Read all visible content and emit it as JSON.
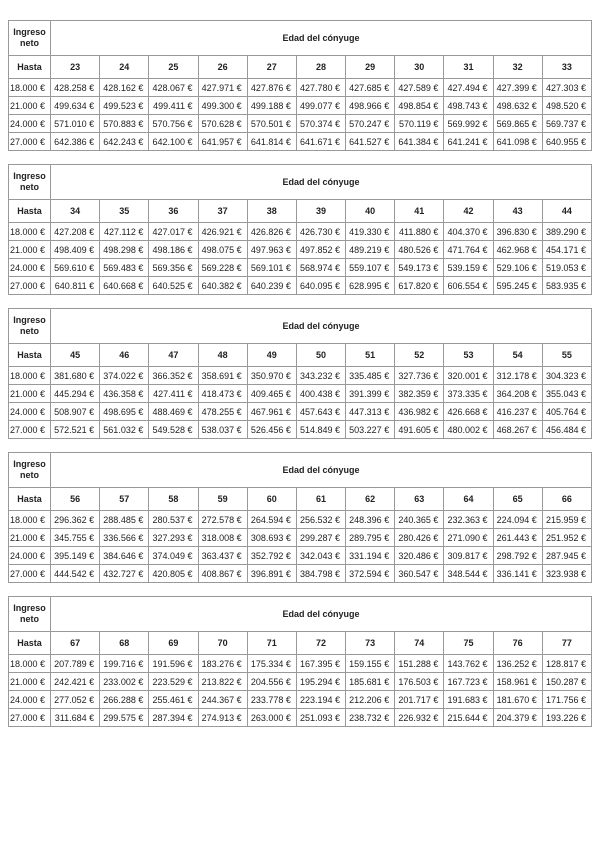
{
  "labels": {
    "income_header": "Ingreso neto",
    "age_header": "Edad del cónyuge",
    "hasta_header": "Hasta"
  },
  "colors": {
    "border": "#999999",
    "text": "#222222",
    "background": "#ffffff"
  },
  "tables": [
    {
      "ages": [
        "23",
        "24",
        "25",
        "26",
        "27",
        "28",
        "29",
        "30",
        "31",
        "32",
        "33"
      ],
      "rows": [
        {
          "income": "18.000 €",
          "values": [
            "428.258 €",
            "428.162 €",
            "428.067 €",
            "427.971 €",
            "427.876 €",
            "427.780 €",
            "427.685 €",
            "427.589 €",
            "427.494 €",
            "427.399 €",
            "427.303 €"
          ]
        },
        {
          "income": "21.000 €",
          "values": [
            "499.634 €",
            "499.523 €",
            "499.411 €",
            "499.300 €",
            "499.188 €",
            "499.077 €",
            "498.966 €",
            "498.854 €",
            "498.743 €",
            "498.632 €",
            "498.520 €"
          ]
        },
        {
          "income": "24.000 €",
          "values": [
            "571.010 €",
            "570.883 €",
            "570.756 €",
            "570.628 €",
            "570.501 €",
            "570.374 €",
            "570.247 €",
            "570.119 €",
            "569.992 €",
            "569.865 €",
            "569.737 €"
          ]
        },
        {
          "income": "27.000 €",
          "values": [
            "642.386 €",
            "642.243 €",
            "642.100 €",
            "641.957 €",
            "641.814 €",
            "641.671 €",
            "641.527 €",
            "641.384 €",
            "641.241 €",
            "641.098 €",
            "640.955 €"
          ]
        }
      ]
    },
    {
      "ages": [
        "34",
        "35",
        "36",
        "37",
        "38",
        "39",
        "40",
        "41",
        "42",
        "43",
        "44"
      ],
      "rows": [
        {
          "income": "18.000 €",
          "values": [
            "427.208 €",
            "427.112 €",
            "427.017 €",
            "426.921 €",
            "426.826 €",
            "426.730 €",
            "419.330 €",
            "411.880 €",
            "404.370 €",
            "396.830 €",
            "389.290 €"
          ]
        },
        {
          "income": "21.000 €",
          "values": [
            "498.409 €",
            "498.298 €",
            "498.186 €",
            "498.075 €",
            "497.963 €",
            "497.852 €",
            "489.219 €",
            "480.526 €",
            "471.764 €",
            "462.968 €",
            "454.171 €"
          ]
        },
        {
          "income": "24.000 €",
          "values": [
            "569.610 €",
            "569.483 €",
            "569.356 €",
            "569.228 €",
            "569.101 €",
            "568.974 €",
            "559.107 €",
            "549.173 €",
            "539.159 €",
            "529.106 €",
            "519.053 €"
          ]
        },
        {
          "income": "27.000 €",
          "values": [
            "640.811 €",
            "640.668 €",
            "640.525 €",
            "640.382 €",
            "640.239 €",
            "640.095 €",
            "628.995 €",
            "617.820 €",
            "606.554 €",
            "595.245 €",
            "583.935 €"
          ]
        }
      ]
    },
    {
      "ages": [
        "45",
        "46",
        "47",
        "48",
        "49",
        "50",
        "51",
        "52",
        "53",
        "54",
        "55"
      ],
      "rows": [
        {
          "income": "18.000 €",
          "values": [
            "381.680 €",
            "374.022 €",
            "366.352 €",
            "358.691 €",
            "350.970 €",
            "343.232 €",
            "335.485 €",
            "327.736 €",
            "320.001 €",
            "312.178 €",
            "304.323 €"
          ]
        },
        {
          "income": "21.000 €",
          "values": [
            "445.294 €",
            "436.358 €",
            "427.411 €",
            "418.473 €",
            "409.465 €",
            "400.438 €",
            "391.399 €",
            "382.359 €",
            "373.335 €",
            "364.208 €",
            "355.043 €"
          ]
        },
        {
          "income": "24.000 €",
          "values": [
            "508.907 €",
            "498.695 €",
            "488.469 €",
            "478.255 €",
            "467.961 €",
            "457.643 €",
            "447.313 €",
            "436.982 €",
            "426.668 €",
            "416.237 €",
            "405.764 €"
          ]
        },
        {
          "income": "27.000 €",
          "values": [
            "572.521 €",
            "561.032 €",
            "549.528 €",
            "538.037 €",
            "526.456 €",
            "514.849 €",
            "503.227 €",
            "491.605 €",
            "480.002 €",
            "468.267 €",
            "456.484 €"
          ]
        }
      ]
    },
    {
      "ages": [
        "56",
        "57",
        "58",
        "59",
        "60",
        "61",
        "62",
        "63",
        "64",
        "65",
        "66"
      ],
      "rows": [
        {
          "income": "18.000 €",
          "values": [
            "296.362 €",
            "288.485 €",
            "280.537 €",
            "272.578 €",
            "264.594 €",
            "256.532 €",
            "248.396 €",
            "240.365 €",
            "232.363 €",
            "224.094 €",
            "215.959 €"
          ]
        },
        {
          "income": "21.000 €",
          "values": [
            "345.755 €",
            "336.566 €",
            "327.293 €",
            "318.008 €",
            "308.693 €",
            "299.287 €",
            "289.795 €",
            "280.426 €",
            "271.090 €",
            "261.443 €",
            "251.952 €"
          ]
        },
        {
          "income": "24.000 €",
          "values": [
            "395.149 €",
            "384.646 €",
            "374.049 €",
            "363.437 €",
            "352.792 €",
            "342.043 €",
            "331.194 €",
            "320.486 €",
            "309.817 €",
            "298.792 €",
            "287.945 €"
          ]
        },
        {
          "income": "27.000 €",
          "values": [
            "444.542 €",
            "432.727 €",
            "420.805 €",
            "408.867 €",
            "396.891 €",
            "384.798 €",
            "372.594 €",
            "360.547 €",
            "348.544 €",
            "336.141 €",
            "323.938 €"
          ]
        }
      ]
    },
    {
      "ages": [
        "67",
        "68",
        "69",
        "70",
        "71",
        "72",
        "73",
        "74",
        "75",
        "76",
        "77"
      ],
      "rows": [
        {
          "income": "18.000 €",
          "values": [
            "207.789 €",
            "199.716 €",
            "191.596 €",
            "183.276 €",
            "175.334 €",
            "167.395 €",
            "159.155 €",
            "151.288 €",
            "143.762 €",
            "136.252 €",
            "128.817 €"
          ]
        },
        {
          "income": "21.000 €",
          "values": [
            "242.421 €",
            "233.002 €",
            "223.529 €",
            "213.822 €",
            "204.556 €",
            "195.294 €",
            "185.681 €",
            "176.503 €",
            "167.723 €",
            "158.961 €",
            "150.287 €"
          ]
        },
        {
          "income": "24.000 €",
          "values": [
            "277.052 €",
            "266.288 €",
            "255.461 €",
            "244.367 €",
            "233.778 €",
            "223.194 €",
            "212.206 €",
            "201.717 €",
            "191.683 €",
            "181.670 €",
            "171.756 €"
          ]
        },
        {
          "income": "27.000 €",
          "values": [
            "311.684 €",
            "299.575 €",
            "287.394 €",
            "274.913 €",
            "263.000 €",
            "251.093 €",
            "238.732 €",
            "226.932 €",
            "215.644 €",
            "204.379 €",
            "193.226 €"
          ]
        }
      ]
    }
  ]
}
